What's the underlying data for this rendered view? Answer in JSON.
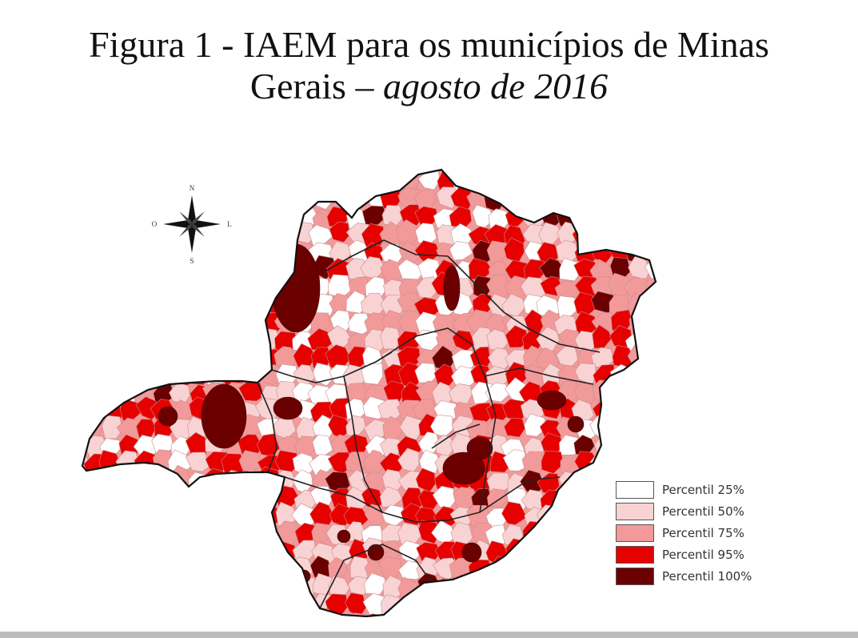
{
  "title": {
    "line1": "Figura 1 - IAEM para os municípios de Minas",
    "line2_prefix": "Gerais – ",
    "line2_italic": "agosto de 2016"
  },
  "compass": {
    "north": "N",
    "south": "S",
    "east": "L",
    "west": "O"
  },
  "legend": [
    {
      "label": "Percentil 25%",
      "color": "#ffffff"
    },
    {
      "label": "Percentil 50%",
      "color": "#f9d3d3"
    },
    {
      "label": "Percentil 75%",
      "color": "#f29a9a"
    },
    {
      "label": "Percentil 95%",
      "color": "#e60000"
    },
    {
      "label": "Percentil 100%",
      "color": "#6b0000"
    }
  ]
}
